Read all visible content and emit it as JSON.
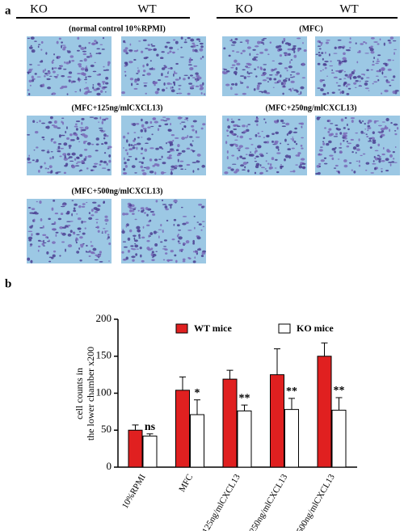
{
  "panel_a": {
    "label": "a",
    "headers": [
      "KO",
      "WT",
      "KO",
      "WT"
    ],
    "titles": [
      "(normal control 10%RPMI)",
      "(MFC)",
      "(MFC+125ng/mlCXCL13)",
      "(MFC+250ng/mlCXCL13)",
      "(MFC+500ng/mlCXCL13)"
    ]
  },
  "chart_data": {
    "type": "bar",
    "panel_label": "b",
    "y_label": [
      "cell counts in",
      "the lower chamber x200"
    ],
    "categories": [
      "10%RPMI",
      "MFC",
      "MFC+125ng/mlCXCL13",
      "MFC+250ng/mlCXCL13",
      "MFC+500ng/mlCXCL13"
    ],
    "series": [
      {
        "name": "WT mice",
        "color": "#e02020",
        "values": [
          50,
          104,
          119,
          125,
          150
        ],
        "errors": [
          7,
          18,
          12,
          35,
          18
        ]
      },
      {
        "name": "KO mice",
        "color": "#ffffff",
        "values": [
          42,
          71,
          76,
          78,
          77
        ],
        "errors": [
          3,
          20,
          8,
          15,
          17
        ]
      }
    ],
    "annotations": [
      "ns",
      "*",
      "**",
      "**",
      "**"
    ],
    "ylim": [
      0,
      200
    ],
    "yticks": [
      0,
      50,
      100,
      150,
      200
    ],
    "grid": false
  }
}
